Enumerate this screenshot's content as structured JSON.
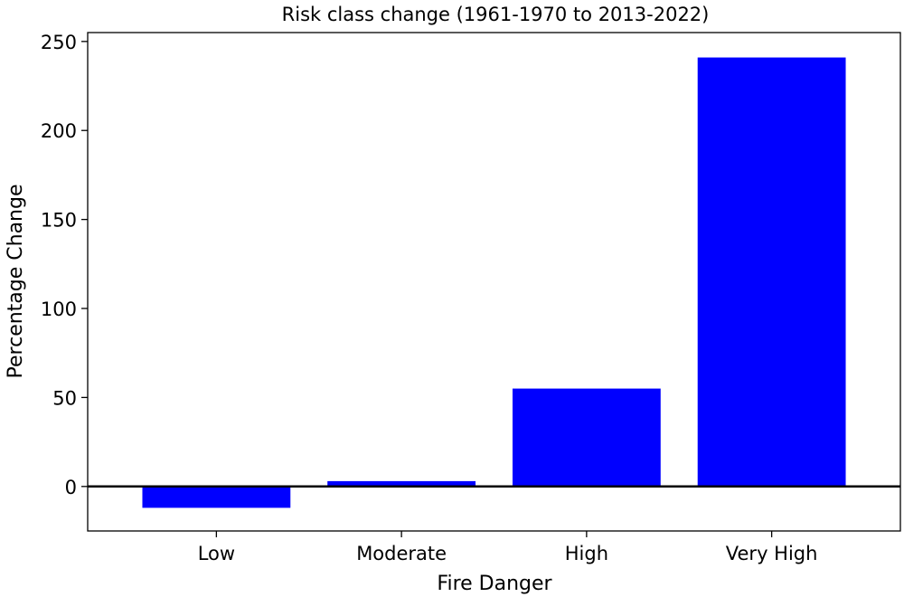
{
  "chart_data": {
    "type": "bar",
    "title": "Risk class change (1961-1970 to 2013-2022)",
    "xlabel": "Fire Danger",
    "ylabel": "Percentage Change",
    "categories": [
      "Low",
      "Moderate",
      "High",
      "Very High"
    ],
    "values": [
      -12,
      3,
      55,
      241
    ],
    "ylim": [
      -25,
      255
    ],
    "yticks": [
      0,
      50,
      100,
      150,
      200,
      250
    ],
    "ytick_labels": [
      "0",
      "50",
      "100",
      "150",
      "200",
      "250"
    ],
    "bar_color": "#0000ff",
    "zero_line": true,
    "grid": false,
    "legend": "none"
  }
}
